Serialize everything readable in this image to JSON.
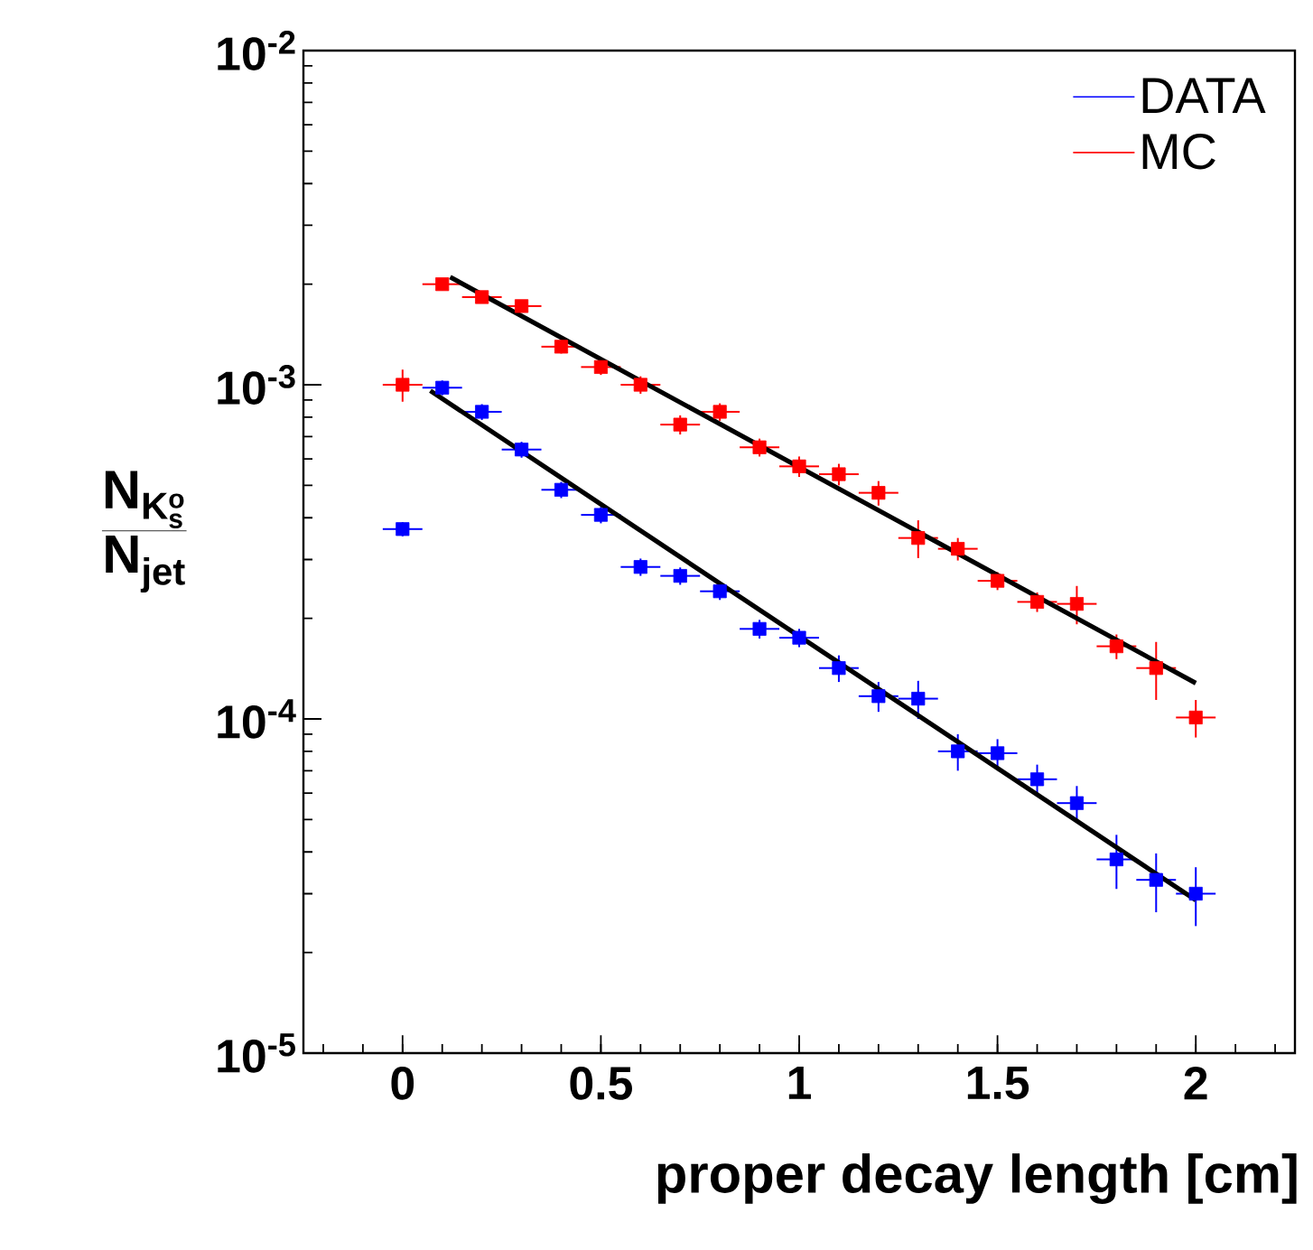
{
  "chart_data": {
    "type": "scatter",
    "xlabel": "proper decay length [cm]",
    "ylabel": "\\frac{\\mathbf{N}_{\\mathbf{K}_{\\mathbf{s}}^{\\mathbf{o}}}}{\\mathbf{N}_{\\mathbf{jet}}}",
    "log": "y",
    "marker": "square",
    "legend": "top right",
    "xlim": [
      -0.25,
      2.25
    ],
    "ylim": [
      1e-05,
      0.01
    ],
    "xticks": [
      0,
      0.5,
      1,
      1.5,
      2
    ],
    "yticks": [
      {
        "value": 1e-05,
        "label": "10$^{-5}$"
      },
      {
        "value": 0.0001,
        "label": "10$^{-4}$"
      },
      {
        "value": 0.001,
        "label": "10$^{-3}$"
      },
      {
        "value": 0.01,
        "label": "10$^{-2}$"
      }
    ],
    "series": [
      {
        "name": "DATA",
        "color": "#0000ff",
        "x": [
          0,
          0.1,
          0.2,
          0.3,
          0.4,
          0.5,
          0.6,
          0.7,
          0.8,
          0.9,
          1.0,
          1.1,
          1.2,
          1.3,
          1.4,
          1.5,
          1.6,
          1.7,
          1.8,
          1.9,
          2.0
        ],
        "values": [
          0.00037,
          0.00098,
          0.00083,
          0.00064,
          0.000485,
          0.000408,
          0.000285,
          0.000268,
          0.000241,
          0.000186,
          0.000175,
          0.000142,
          0.000117,
          0.000115,
          8e-05,
          7.9e-05,
          6.6e-05,
          5.6e-05,
          3.8e-05,
          3.3e-05,
          3e-05
        ],
        "errors": [
          1.8e-05,
          5e-05,
          4.5e-05,
          3.5e-05,
          2.7e-05,
          2.3e-05,
          1.7e-05,
          1.6e-05,
          1.4e-05,
          1.2e-05,
          1.1e-05,
          1.3e-05,
          1.2e-05,
          1.5e-05,
          1e-05,
          8e-06,
          7e-06,
          7e-06,
          7e-06,
          6.6e-06,
          6e-06
        ],
        "xerrors": [
          0.05,
          0.05,
          0.05,
          0.05,
          0.05,
          0.05,
          0.05,
          0.05,
          0.05,
          0.05,
          0.05,
          0.05,
          0.05,
          0.05,
          0.05,
          0.05,
          0.05,
          0.05,
          0.05,
          0.05,
          0.05
        ]
      },
      {
        "name": "MC",
        "color": "#ff0000",
        "x": [
          0,
          0.1,
          0.2,
          0.3,
          0.4,
          0.5,
          0.6,
          0.7,
          0.8,
          0.9,
          1.0,
          1.1,
          1.2,
          1.3,
          1.4,
          1.5,
          1.6,
          1.7,
          1.8,
          1.9,
          2.0
        ],
        "values": [
          0.001,
          0.002,
          0.00183,
          0.00172,
          0.0013,
          0.00113,
          0.001,
          0.00076,
          0.00083,
          0.00065,
          0.00057,
          0.00054,
          0.000475,
          0.000348,
          0.000323,
          0.000259,
          0.000224,
          0.000221,
          0.000165,
          0.000142,
          0.000101
        ],
        "errors": [
          0.00011,
          8e-05,
          7e-05,
          7e-05,
          6e-05,
          6e-05,
          6e-05,
          5e-05,
          5e-05,
          4e-05,
          4e-05,
          4e-05,
          4e-05,
          4.5e-05,
          2.5e-05,
          1.6e-05,
          1.5e-05,
          2.9e-05,
          1.4e-05,
          2.8e-05,
          1.3e-05
        ],
        "xerrors": [
          0.05,
          0.05,
          0.05,
          0.05,
          0.05,
          0.05,
          0.05,
          0.05,
          0.05,
          0.05,
          0.05,
          0.05,
          0.05,
          0.05,
          0.05,
          0.05,
          0.05,
          0.05,
          0.05,
          0.05,
          0.05
        ]
      },
      {
        "type": "line",
        "marker": "none",
        "color": "#000000",
        "x": [
          0.07,
          2.0
        ],
        "values": [
          0.00096,
          2.87e-05
        ]
      },
      {
        "type": "line",
        "marker": "none",
        "color": "#000000",
        "x": [
          0.12,
          2.0
        ],
        "values": [
          0.0021,
          0.000128
        ]
      }
    ]
  }
}
